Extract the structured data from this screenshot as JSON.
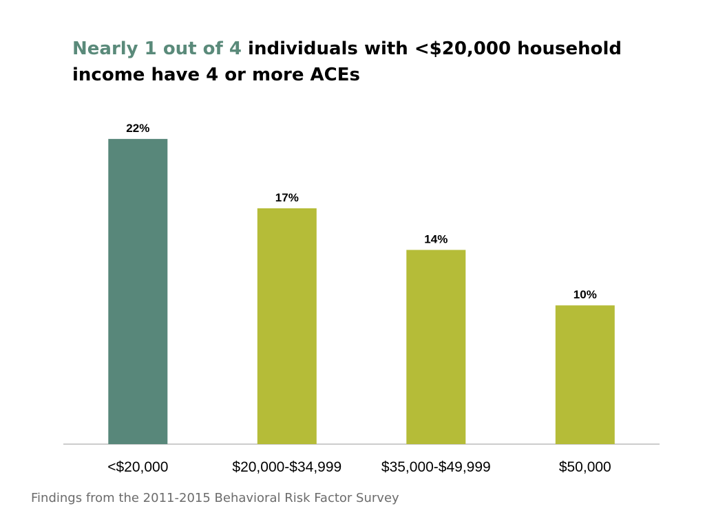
{
  "title": {
    "highlight": "Nearly 1 out of 4",
    "rest": " individuals with <$20,000 household income have 4 or more ACEs"
  },
  "footnote": "Findings from the 2011-2015 Behavioral Risk Factor Survey",
  "colors": {
    "highlight_bar": "#58877a",
    "other_bar": "#b5bc38",
    "title_highlight": "#5a8a7a",
    "axis": "#999999"
  },
  "chart_data": {
    "type": "bar",
    "categories": [
      "<$20,000",
      "$20,000-$34,999",
      "$35,000-$49,999",
      "$50,000"
    ],
    "values": [
      22,
      17,
      14,
      10
    ],
    "value_labels": [
      "22%",
      "17%",
      "14%",
      "10%"
    ],
    "highlighted_category": "<$20,000",
    "xlabel": "",
    "ylabel": "",
    "ylim": [
      0,
      22.5
    ],
    "grid": false,
    "legend": "none"
  }
}
